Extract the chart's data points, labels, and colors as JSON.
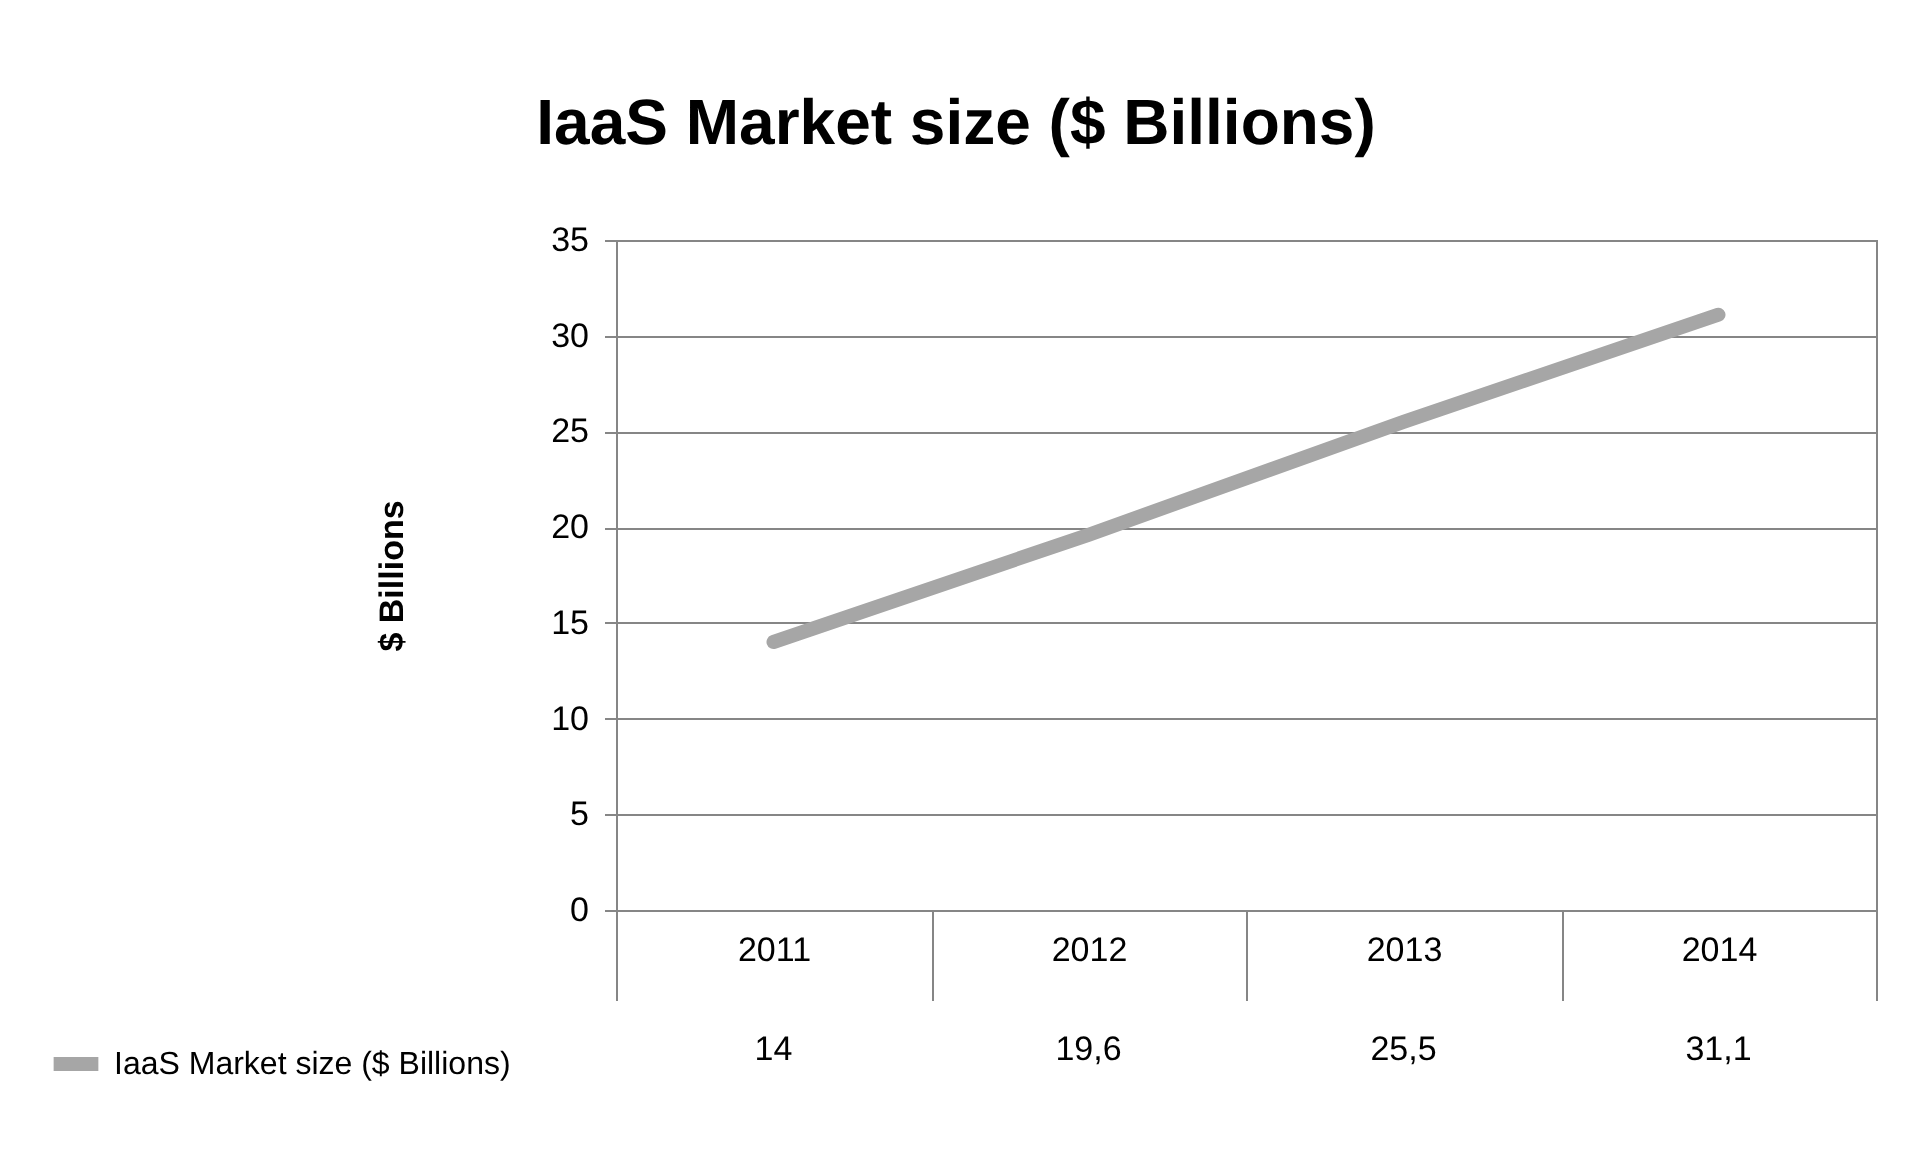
{
  "chart_data": {
    "type": "line",
    "title": "IaaS Market size ($ Billions)",
    "ylabel": "$ Billions",
    "categories": [
      "2011",
      "2012",
      "2013",
      "2014"
    ],
    "series": [
      {
        "name": "IaaS Market size ($ Billions)",
        "color": "#a6a6a6",
        "values": [
          14,
          19.6,
          25.5,
          31.1
        ],
        "value_labels": [
          "14",
          "19,6",
          "25,5",
          "31,1"
        ]
      }
    ],
    "ylim": [
      0,
      35
    ],
    "yticks": [
      0,
      5,
      10,
      15,
      20,
      25,
      30,
      35
    ],
    "grid": "y",
    "legend": "bottom left",
    "line_style": "solid"
  }
}
